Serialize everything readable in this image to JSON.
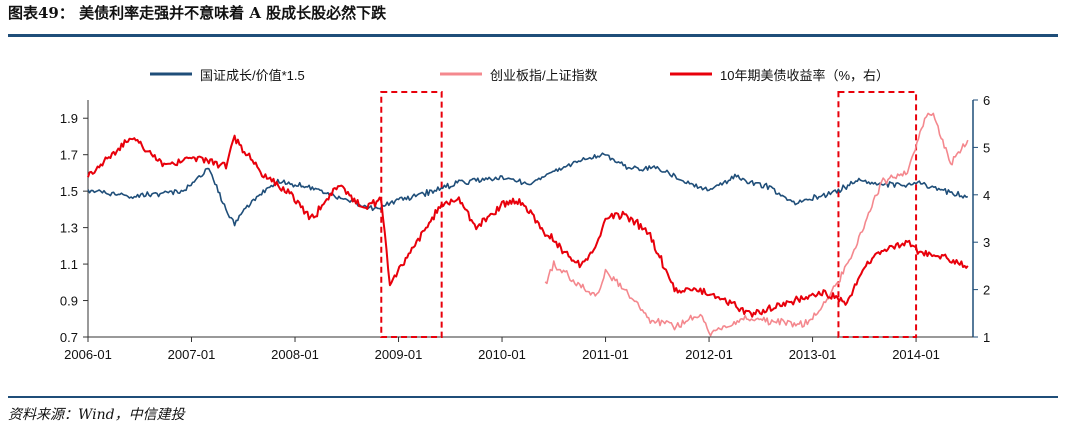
{
  "figure": {
    "title": "图表49：  美债利率走强并不意味着 A 股成长股必然下跌",
    "source": "资料来源：Wind，中信建投"
  },
  "chart_data": {
    "type": "line",
    "x_ticks": [
      "2006-01",
      "2007-01",
      "2008-01",
      "2009-01",
      "2010-01",
      "2011-01",
      "2012-01",
      "2013-01",
      "2014-01"
    ],
    "y_left": {
      "ticks": [
        "0.7",
        "0.9",
        "1.1",
        "1.3",
        "1.5",
        "1.7",
        "1.9"
      ],
      "ylim": [
        0.7,
        2.0
      ]
    },
    "y_right": {
      "ticks": [
        "1",
        "2",
        "3",
        "4",
        "5",
        "6"
      ],
      "ylim": [
        1,
        6
      ]
    },
    "legend_position": "top",
    "series": [
      {
        "name": "国证成长/价值*1.5",
        "axis": "left",
        "color": "#1f4e79",
        "points": [
          [
            "2006-01",
            1.5
          ],
          [
            "2006-06",
            1.47
          ],
          [
            "2006-12",
            1.5
          ],
          [
            "2007-03",
            1.62
          ],
          [
            "2007-05",
            1.4
          ],
          [
            "2007-06",
            1.32
          ],
          [
            "2007-08",
            1.45
          ],
          [
            "2007-11",
            1.55
          ],
          [
            "2008-03",
            1.52
          ],
          [
            "2008-07",
            1.45
          ],
          [
            "2008-10",
            1.4
          ],
          [
            "2009-01",
            1.45
          ],
          [
            "2009-05",
            1.5
          ],
          [
            "2009-08",
            1.55
          ],
          [
            "2009-10",
            1.56
          ],
          [
            "2010-01",
            1.58
          ],
          [
            "2010-04",
            1.54
          ],
          [
            "2010-08",
            1.63
          ],
          [
            "2010-11",
            1.68
          ],
          [
            "2011-01",
            1.7
          ],
          [
            "2011-04",
            1.62
          ],
          [
            "2011-07",
            1.63
          ],
          [
            "2011-10",
            1.55
          ],
          [
            "2012-01",
            1.5
          ],
          [
            "2012-04",
            1.58
          ],
          [
            "2012-08",
            1.52
          ],
          [
            "2012-11",
            1.43
          ],
          [
            "2013-01",
            1.46
          ],
          [
            "2013-04",
            1.5
          ],
          [
            "2013-06",
            1.56
          ],
          [
            "2013-09",
            1.54
          ],
          [
            "2013-12",
            1.53
          ],
          [
            "2014-01",
            1.55
          ],
          [
            "2014-04",
            1.5
          ],
          [
            "2014-07",
            1.47
          ]
        ]
      },
      {
        "name": "创业板指/上证指数",
        "axis": "left",
        "color": "#f4888e",
        "points": [
          [
            "2010-06",
            0.98
          ],
          [
            "2010-07",
            1.1
          ],
          [
            "2010-10",
            0.98
          ],
          [
            "2010-12",
            0.93
          ],
          [
            "2011-01",
            1.06
          ],
          [
            "2011-04",
            0.92
          ],
          [
            "2011-06",
            0.8
          ],
          [
            "2011-09",
            0.76
          ],
          [
            "2011-12",
            0.82
          ],
          [
            "2012-01",
            0.72
          ],
          [
            "2012-05",
            0.8
          ],
          [
            "2012-09",
            0.78
          ],
          [
            "2012-12",
            0.77
          ],
          [
            "2013-01",
            0.8
          ],
          [
            "2013-04",
            1.0
          ],
          [
            "2013-06",
            1.2
          ],
          [
            "2013-09",
            1.55
          ],
          [
            "2013-12",
            1.6
          ],
          [
            "2014-02",
            1.9
          ],
          [
            "2014-03",
            1.92
          ],
          [
            "2014-05",
            1.65
          ],
          [
            "2014-07",
            1.78
          ]
        ]
      },
      {
        "name": "10年期美债收益率（%，右）",
        "axis": "right",
        "color": "#e8000b",
        "points": [
          [
            "2006-01",
            4.4
          ],
          [
            "2006-06",
            5.2
          ],
          [
            "2006-10",
            4.6
          ],
          [
            "2007-01",
            4.8
          ],
          [
            "2007-05",
            4.6
          ],
          [
            "2007-06",
            5.2
          ],
          [
            "2007-09",
            4.5
          ],
          [
            "2007-12",
            4.1
          ],
          [
            "2008-03",
            3.5
          ],
          [
            "2008-06",
            4.2
          ],
          [
            "2008-09",
            3.7
          ],
          [
            "2008-11",
            3.9
          ],
          [
            "2008-12",
            2.1
          ],
          [
            "2009-02",
            2.7
          ],
          [
            "2009-06",
            3.8
          ],
          [
            "2009-08",
            3.9
          ],
          [
            "2009-10",
            3.3
          ],
          [
            "2010-01",
            3.8
          ],
          [
            "2010-03",
            3.9
          ],
          [
            "2010-06",
            3.2
          ],
          [
            "2010-10",
            2.5
          ],
          [
            "2010-12",
            2.9
          ],
          [
            "2011-01",
            3.5
          ],
          [
            "2011-03",
            3.6
          ],
          [
            "2011-06",
            3.2
          ],
          [
            "2011-08",
            2.4
          ],
          [
            "2011-09",
            2.0
          ],
          [
            "2011-12",
            2.0
          ],
          [
            "2012-01",
            1.9
          ],
          [
            "2012-06",
            1.5
          ],
          [
            "2012-08",
            1.6
          ],
          [
            "2012-10",
            1.7
          ],
          [
            "2013-01",
            1.9
          ],
          [
            "2013-03",
            1.9
          ],
          [
            "2013-05",
            1.7
          ],
          [
            "2013-07",
            2.5
          ],
          [
            "2013-09",
            2.8
          ],
          [
            "2013-12",
            3.0
          ],
          [
            "2014-01",
            2.8
          ],
          [
            "2014-04",
            2.7
          ],
          [
            "2014-07",
            2.5
          ]
        ]
      }
    ],
    "highlight_periods": [
      [
        "2008-11",
        "2009-06"
      ],
      [
        "2013-04",
        "2014-01"
      ]
    ]
  }
}
